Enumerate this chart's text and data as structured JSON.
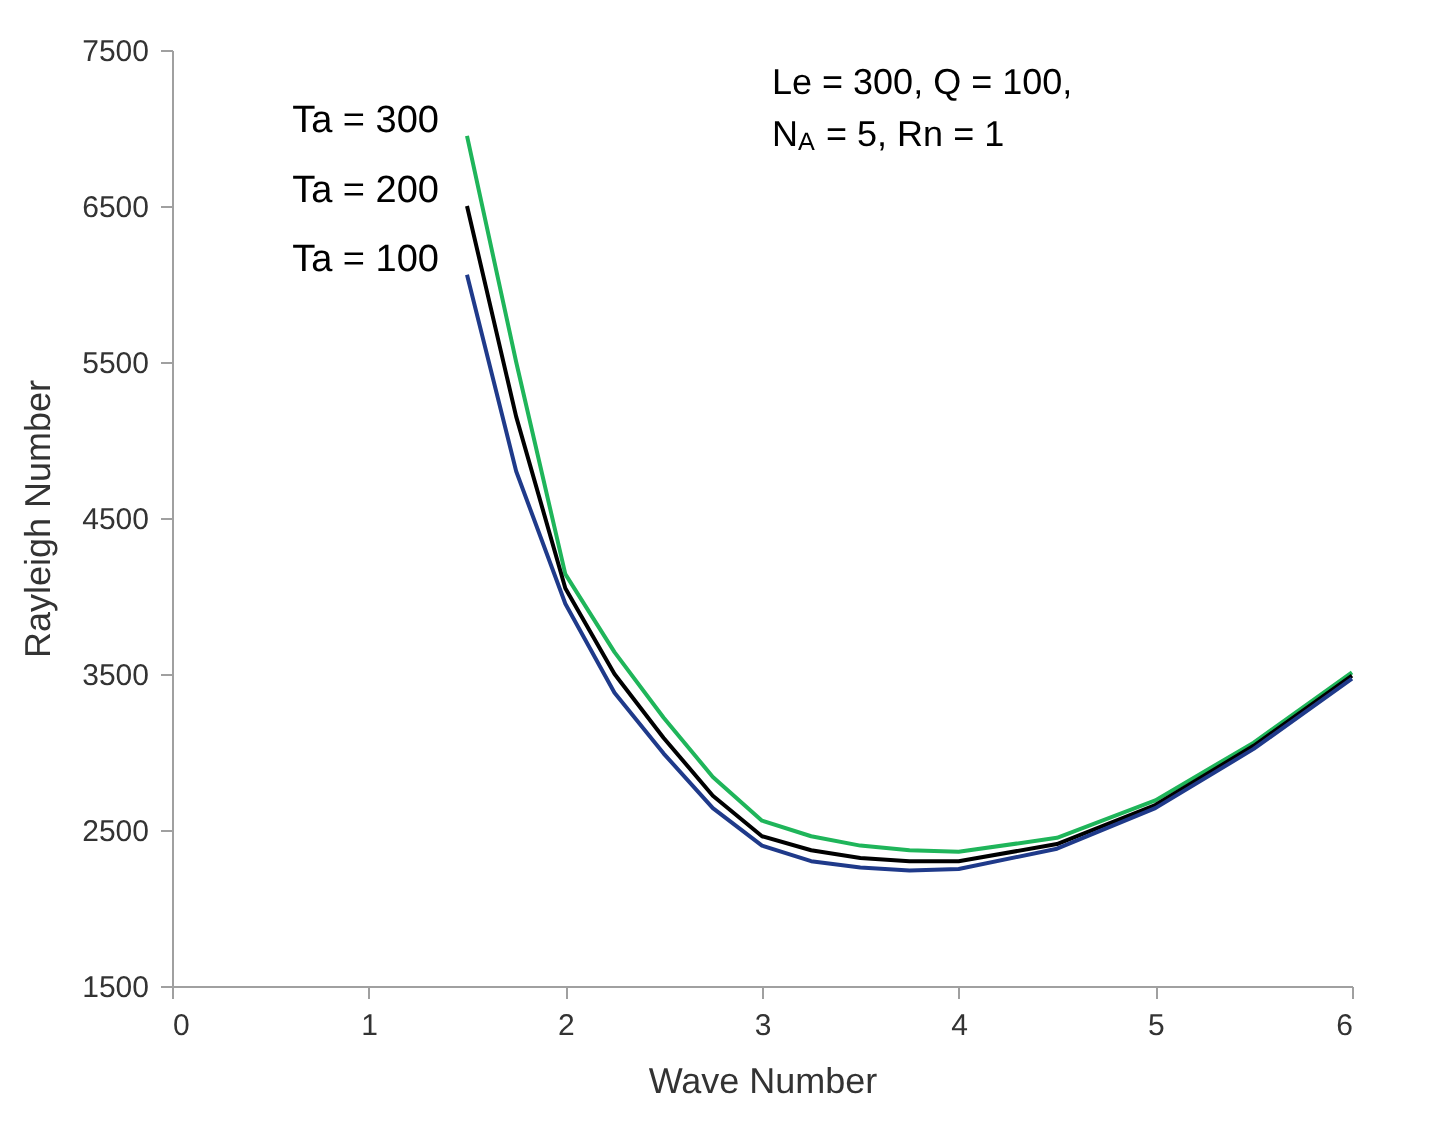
{
  "chart_data": {
    "type": "line",
    "xlabel": "Wave Number",
    "ylabel": "Rayleigh Number",
    "xlim": [
      0,
      6
    ],
    "xticks": [
      0,
      1,
      2,
      3,
      4,
      5,
      6
    ],
    "ylim": [
      1500,
      7500
    ],
    "yticks": [
      1500,
      2500,
      3500,
      4500,
      5500,
      6500,
      7500
    ],
    "grid": false,
    "marker": "none",
    "line_style": "solid",
    "x": [
      1.5,
      1.75,
      2,
      2.25,
      2.5,
      2.75,
      3,
      3.25,
      3.5,
      3.75,
      4,
      4.5,
      5,
      5.5,
      6
    ],
    "series": [
      {
        "name": "Ta = 300",
        "color": "#1fb55a",
        "values": [
          6950,
          5500,
          4140,
          3640,
          3220,
          2840,
          2560,
          2460,
          2400,
          2370,
          2360,
          2450,
          2690,
          3060,
          3510
        ]
      },
      {
        "name": "Ta = 200",
        "color": "#000000",
        "values": [
          6500,
          5150,
          4050,
          3500,
          3090,
          2720,
          2460,
          2370,
          2320,
          2300,
          2300,
          2410,
          2660,
          3040,
          3490
        ]
      },
      {
        "name": "Ta = 100",
        "color": "#1f3a8a",
        "values": [
          6060,
          4800,
          3950,
          3380,
          2990,
          2640,
          2400,
          2300,
          2260,
          2240,
          2250,
          2380,
          2640,
          3020,
          3470
        ]
      }
    ],
    "annotations": [
      "Le = 300, Q = 100,\nN$_{A}$ = 5, Rn = 1"
    ]
  }
}
